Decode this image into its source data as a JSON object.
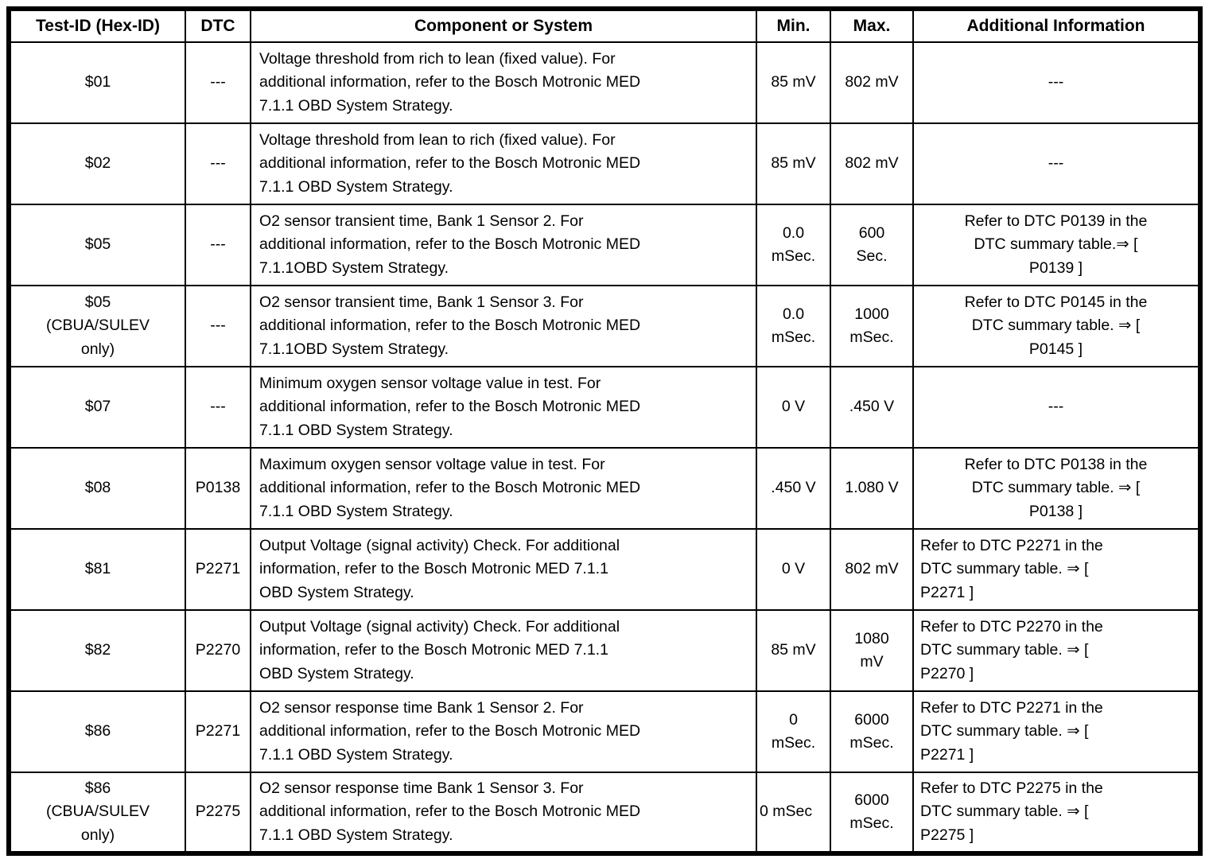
{
  "table": {
    "headers": [
      "Test-ID (Hex-ID)",
      "DTC",
      "Component or System",
      "Min.",
      "Max.",
      "Additional Information"
    ],
    "rows": [
      {
        "test_id": "$01",
        "dtc": "---",
        "component": "Voltage threshold from rich to lean (fixed value). For\nadditional information, refer to the Bosch Motronic MED\n7.1.1 OBD System Strategy.",
        "min": "85 mV",
        "max": "802 mV",
        "info": "---"
      },
      {
        "test_id": "$02",
        "dtc": "---",
        "component": "Voltage threshold from lean to rich (fixed value). For\nadditional information, refer to the Bosch Motronic MED\n7.1.1 OBD System Strategy.",
        "min": "85 mV",
        "max": "802 mV",
        "info": "---"
      },
      {
        "test_id": "$05",
        "dtc": "---",
        "component": "O2 sensor transient time, Bank 1 Sensor 2. For\nadditional information, refer to the Bosch Motronic MED\n7.1.1OBD System Strategy.",
        "min": "0.0\nmSec.",
        "max": "600\nSec.",
        "info": "Refer to DTC P0139 in the\nDTC summary table.⇒ [\nP0139 ]"
      },
      {
        "test_id": "$05\n(CBUA/SULEV\nonly)",
        "dtc": "---",
        "component": "O2 sensor transient time, Bank 1 Sensor 3. For\nadditional information, refer to the Bosch Motronic MED\n7.1.1OBD System Strategy.",
        "min": "0.0\nmSec.",
        "max": "1000\nmSec.",
        "info": "Refer to DTC P0145 in the\nDTC summary table. ⇒ [\nP0145 ]"
      },
      {
        "test_id": "$07",
        "dtc": "---",
        "component": "Minimum oxygen sensor voltage value in test. For\nadditional information, refer to the Bosch Motronic MED\n7.1.1 OBD System Strategy.",
        "min": "0 V",
        "max": ".450 V",
        "info": "---"
      },
      {
        "test_id": "$08",
        "dtc": "P0138",
        "component": "Maximum oxygen sensor voltage value in test. For\nadditional information, refer to the Bosch Motronic MED\n7.1.1 OBD System Strategy.",
        "min": ".450 V",
        "max": "1.080 V",
        "info": "Refer to DTC P0138 in the\nDTC summary table. ⇒ [\nP0138 ]"
      },
      {
        "test_id": "$81",
        "dtc": "P2271",
        "component": "Output Voltage (signal activity) Check. For additional\ninformation, refer to the Bosch Motronic MED 7.1.1\nOBD System Strategy.",
        "min": "0 V",
        "max": "802 mV",
        "info": "Refer to DTC P2271 in the\nDTC summary table. ⇒ [\nP2271 ]"
      },
      {
        "test_id": "$82",
        "dtc": "P2270",
        "component": "Output Voltage (signal activity) Check. For additional\ninformation, refer to the Bosch Motronic MED 7.1.1\nOBD System Strategy.",
        "min": "85 mV",
        "max": "1080\nmV",
        "info": "Refer to DTC P2270 in the\nDTC summary table. ⇒ [\nP2270 ]"
      },
      {
        "test_id": "$86",
        "dtc": "P2271",
        "component": "O2 sensor response time Bank 1 Sensor 2. For\nadditional information, refer to the Bosch Motronic MED\n7.1.1 OBD System Strategy.",
        "min": "0\nmSec.",
        "max": "6000\nmSec.",
        "info": "Refer to DTC P2271 in the\nDTC summary table. ⇒ [\nP2271 ]"
      },
      {
        "test_id": "$86\n(CBUA/SULEV\nonly)",
        "dtc": "P2275",
        "component": "O2 sensor response time Bank 1 Sensor 3. For\nadditional information, refer to the Bosch Motronic MED\n7.1.1 OBD System Strategy.",
        "min": "0 mSec",
        "max": "6000\nmSec.",
        "info": "Refer to DTC P2275 in the\nDTC summary table. ⇒ [\nP2275 ]"
      }
    ]
  }
}
